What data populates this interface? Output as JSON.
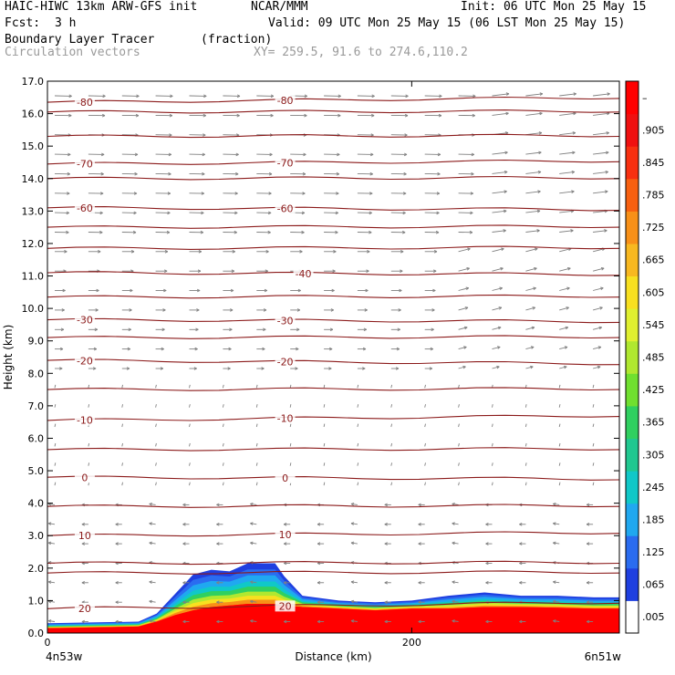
{
  "header": {
    "title_left": "HAIC-HIWC 13km ARW-GFS init",
    "center_name": "NCAR/MMM",
    "init_text": "Init: 06 UTC Mon 25 May 15",
    "fcst_label": "Fcst:",
    "fcst_value": "3 h",
    "valid_text": "Valid: 09 UTC Mon 25 May 15 (06 LST Mon 25 May 15)",
    "field_name": "Boundary Layer Tracer",
    "field_units": "(fraction)",
    "vector_name": "Circulation vectors",
    "xy_text": "XY= 259.5, 91.6 to 274.6,110.2"
  },
  "chart_data": {
    "type": "heatmap",
    "xlabel": "Distance (km)",
    "ylabel": "Height (km)",
    "xlim": [
      0,
      314
    ],
    "ylim": [
      0,
      17
    ],
    "x_ticks": [
      0,
      200
    ],
    "y_ticks": [
      0.0,
      1.0,
      2.0,
      3.0,
      4.0,
      5.0,
      6.0,
      7.0,
      8.0,
      9.0,
      10.0,
      11.0,
      12.0,
      13.0,
      14.0,
      15.0,
      16.0,
      17.0
    ],
    "x_left_label": "4n53w",
    "x_right_label": "6n51w",
    "colorbar_labels": [
      ".005",
      ".065",
      ".125",
      ".185",
      ".245",
      ".305",
      ".365",
      ".425",
      ".485",
      ".545",
      ".605",
      ".665",
      ".725",
      ".785",
      ".845",
      ".905",
      "–"
    ],
    "colorbar_colors": [
      "#ffffff",
      "#1f3fe0",
      "#2a6cf0",
      "#20a8f0",
      "#10c8c8",
      "#20c890",
      "#30d060",
      "#70e030",
      "#b0e830",
      "#e0f030",
      "#f8e020",
      "#f8b820",
      "#f89018",
      "#f86010",
      "#f83010",
      "#f01010",
      "#ff0000"
    ],
    "colors": {
      "temperature_contour": "#8b1a1a",
      "vectors": "#808080"
    },
    "temperature_contours": [
      {
        "label": "20",
        "height_left": 0.75,
        "height_right": 0.95,
        "label_x": [
          20,
          130
        ]
      },
      {
        "label": "10",
        "height_left": 3.0,
        "height_right": 3.1,
        "label_x": [
          20,
          130
        ]
      },
      {
        "label": "0",
        "height_left": 4.8,
        "height_right": 4.75,
        "label_x": [
          20,
          130
        ]
      },
      {
        "label": "-10",
        "height_left": 6.55,
        "height_right": 6.7,
        "label_x": [
          20,
          130
        ]
      },
      {
        "label": "-20",
        "height_left": 8.4,
        "height_right": 8.3,
        "label_x": [
          20,
          130
        ]
      },
      {
        "label": "-30",
        "height_left": 9.65,
        "height_right": 9.6,
        "label_x": [
          20,
          130
        ]
      },
      {
        "label": "-40",
        "height_left": 11.1,
        "height_right": 11.05,
        "label_x": [
          140
        ]
      },
      {
        "label": "-60",
        "height_left": 13.1,
        "height_right": 13.05,
        "label_x": [
          20,
          130
        ]
      },
      {
        "label": "-70",
        "height_left": 14.45,
        "height_right": 14.55,
        "label_x": [
          20,
          130
        ]
      },
      {
        "label": "-80",
        "height_left": 16.35,
        "height_right": 16.5,
        "label_x": [
          20,
          130
        ]
      }
    ],
    "unlabeled_contour_heights": [
      1.85,
      2.15,
      3.9,
      5.65,
      7.5,
      9.1,
      10.35,
      11.85,
      12.5,
      14.0,
      15.3,
      16.05
    ],
    "tracer_profile": {
      "x_km": [
        0,
        50,
        60,
        70,
        80,
        90,
        100,
        110,
        125,
        130,
        140,
        160,
        180,
        200,
        220,
        240,
        260,
        280,
        300,
        314
      ],
      "top_km": [
        0.3,
        0.35,
        0.6,
        1.2,
        1.8,
        1.95,
        1.9,
        2.15,
        2.15,
        1.75,
        1.15,
        1.0,
        0.95,
        1.0,
        1.15,
        1.25,
        1.15,
        1.15,
        1.1,
        1.1
      ],
      "red_top_km": [
        0.15,
        0.2,
        0.35,
        0.55,
        0.7,
        0.8,
        0.85,
        0.9,
        0.9,
        0.85,
        0.8,
        0.75,
        0.7,
        0.75,
        0.75,
        0.8,
        0.8,
        0.78,
        0.75,
        0.75
      ]
    }
  }
}
